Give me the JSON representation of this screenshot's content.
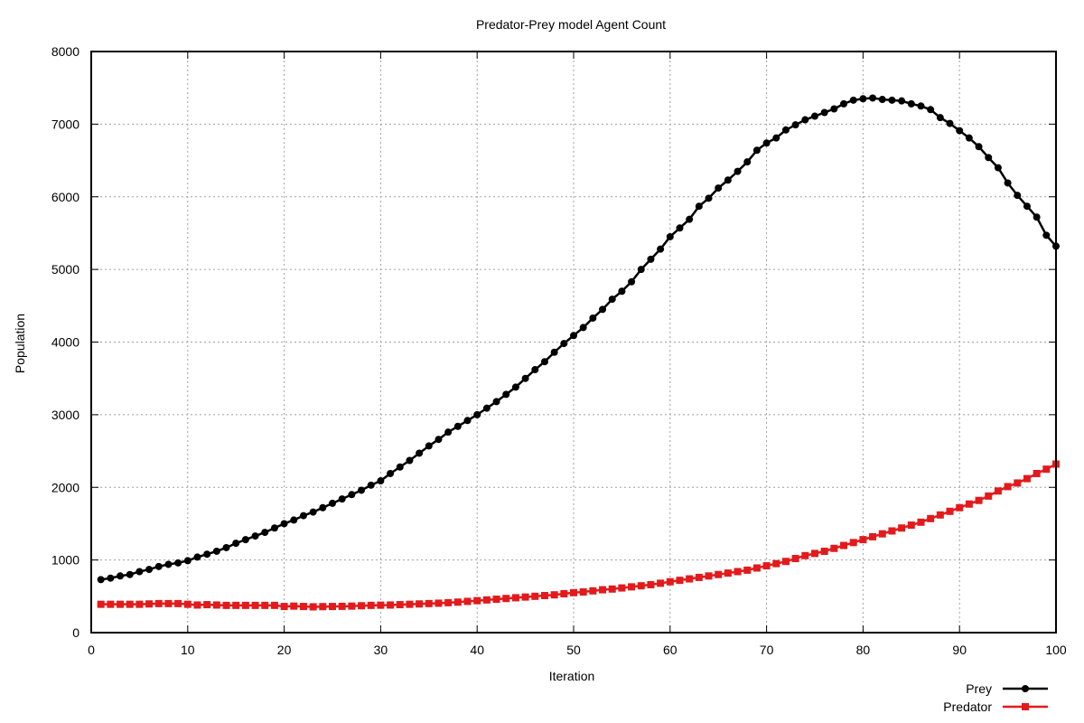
{
  "chart_data": {
    "type": "line",
    "title": "Predator-Prey model Agent Count",
    "xlabel": "Iteration",
    "ylabel": "Population",
    "xlim": [
      0,
      100
    ],
    "ylim": [
      0,
      8000
    ],
    "xticks": [
      0,
      10,
      20,
      30,
      40,
      50,
      60,
      70,
      80,
      90,
      100
    ],
    "yticks": [
      0,
      1000,
      2000,
      3000,
      4000,
      5000,
      6000,
      7000,
      8000
    ],
    "grid": true,
    "legend_position": "bottom-right, below plot",
    "x": [
      1,
      2,
      3,
      4,
      5,
      6,
      7,
      8,
      9,
      10,
      11,
      12,
      13,
      14,
      15,
      16,
      17,
      18,
      19,
      20,
      21,
      22,
      23,
      24,
      25,
      26,
      27,
      28,
      29,
      30,
      31,
      32,
      33,
      34,
      35,
      36,
      37,
      38,
      39,
      40,
      41,
      42,
      43,
      44,
      45,
      46,
      47,
      48,
      49,
      50,
      51,
      52,
      53,
      54,
      55,
      56,
      57,
      58,
      59,
      60,
      61,
      62,
      63,
      64,
      65,
      66,
      67,
      68,
      69,
      70,
      71,
      72,
      73,
      74,
      75,
      76,
      77,
      78,
      79,
      80,
      81,
      82,
      83,
      84,
      85,
      86,
      87,
      88,
      89,
      90,
      91,
      92,
      93,
      94,
      95,
      96,
      97,
      98,
      99,
      100
    ],
    "series": [
      {
        "name": "Prey",
        "color": "#000000",
        "marker": "circle",
        "values": [
          730,
          750,
          780,
          800,
          840,
          870,
          910,
          940,
          960,
          990,
          1040,
          1080,
          1120,
          1170,
          1230,
          1280,
          1330,
          1380,
          1440,
          1500,
          1550,
          1610,
          1660,
          1720,
          1780,
          1840,
          1900,
          1960,
          2030,
          2090,
          2190,
          2280,
          2370,
          2470,
          2570,
          2660,
          2760,
          2840,
          2920,
          3000,
          3090,
          3180,
          3280,
          3380,
          3500,
          3620,
          3730,
          3860,
          3980,
          4090,
          4200,
          4330,
          4450,
          4590,
          4700,
          4830,
          5000,
          5140,
          5280,
          5450,
          5570,
          5690,
          5870,
          5980,
          6120,
          6230,
          6350,
          6480,
          6640,
          6740,
          6810,
          6920,
          6990,
          7060,
          7110,
          7160,
          7210,
          7280,
          7330,
          7350,
          7360,
          7340,
          7330,
          7320,
          7280,
          7250,
          7200,
          7090,
          7010,
          6910,
          6810,
          6690,
          6540,
          6400,
          6190,
          6020,
          5870,
          5720,
          5470,
          5320
        ]
      },
      {
        "name": "Predator",
        "color": "#e31a1c",
        "marker": "square",
        "values": [
          390,
          390,
          390,
          390,
          390,
          395,
          400,
          400,
          400,
          390,
          380,
          385,
          380,
          375,
          375,
          375,
          375,
          375,
          375,
          360,
          365,
          360,
          355,
          358,
          360,
          362,
          365,
          370,
          375,
          378,
          380,
          385,
          390,
          395,
          400,
          405,
          412,
          420,
          430,
          440,
          450,
          460,
          470,
          480,
          490,
          500,
          510,
          520,
          535,
          550,
          560,
          575,
          590,
          600,
          615,
          630,
          645,
          660,
          680,
          700,
          720,
          740,
          760,
          780,
          800,
          820,
          840,
          860,
          890,
          920,
          950,
          980,
          1020,
          1060,
          1090,
          1120,
          1160,
          1200,
          1240,
          1280,
          1320,
          1360,
          1400,
          1440,
          1480,
          1520,
          1570,
          1620,
          1670,
          1720,
          1770,
          1820,
          1880,
          1950,
          2010,
          2060,
          2120,
          2190,
          2250,
          2320
        ]
      }
    ]
  }
}
